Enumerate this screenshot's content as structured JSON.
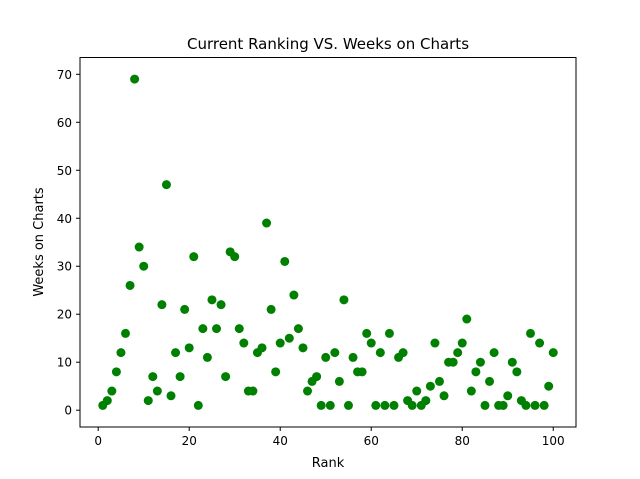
{
  "chart_data": {
    "type": "scatter",
    "title": "Current Ranking VS. Weeks on Charts",
    "xlabel": "Rank",
    "ylabel": "Weeks on Charts",
    "xlim": [
      -4,
      105
    ],
    "ylim": [
      -3.5,
      73.5
    ],
    "xticks": [
      0,
      20,
      40,
      60,
      80,
      100
    ],
    "yticks": [
      0,
      10,
      20,
      30,
      40,
      50,
      60,
      70
    ],
    "grid": false,
    "marker_color": "#008000",
    "series": [
      {
        "x": [
          1,
          2,
          3,
          4,
          5,
          6,
          7,
          8,
          9,
          10,
          11,
          12,
          13,
          14,
          15,
          16,
          17,
          18,
          19,
          20,
          21,
          22,
          23,
          24,
          25,
          26,
          27,
          28,
          29,
          30,
          31,
          32,
          33,
          34,
          35,
          36,
          37,
          38,
          39,
          40,
          41,
          42,
          43,
          44,
          45,
          46,
          47,
          48,
          49,
          50,
          51,
          52,
          53,
          54,
          55,
          56,
          57,
          58,
          59,
          60,
          61,
          62,
          63,
          64,
          65,
          66,
          67,
          68,
          69,
          70,
          71,
          72,
          73,
          74,
          75,
          76,
          77,
          78,
          79,
          80,
          81,
          82,
          83,
          84,
          85,
          86,
          87,
          88,
          89,
          90,
          91,
          92,
          93,
          94,
          95,
          96,
          97,
          98,
          99,
          100
        ],
        "y": [
          1,
          2,
          4,
          8,
          12,
          16,
          26,
          69,
          34,
          30,
          2,
          7,
          4,
          22,
          47,
          3,
          12,
          7,
          21,
          13,
          32,
          1,
          17,
          11,
          23,
          17,
          22,
          7,
          33,
          32,
          17,
          14,
          4,
          4,
          12,
          13,
          39,
          21,
          8,
          14,
          31,
          15,
          24,
          17,
          13,
          4,
          6,
          7,
          1,
          11,
          1,
          12,
          6,
          23,
          1,
          11,
          8,
          8,
          16,
          14,
          1,
          12,
          1,
          16,
          1,
          11,
          12,
          2,
          1,
          4,
          1,
          2,
          5,
          14,
          6,
          3,
          10,
          10,
          12,
          14,
          19,
          4,
          8,
          10,
          1,
          6,
          12,
          1,
          1,
          3,
          10,
          8,
          2,
          1,
          16,
          1,
          14,
          1,
          5,
          12
        ]
      }
    ]
  }
}
